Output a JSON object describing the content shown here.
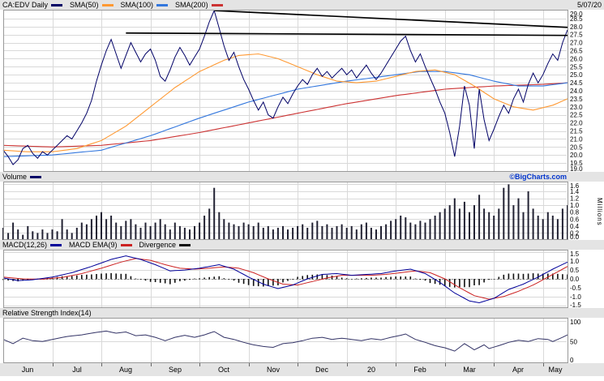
{
  "chart_data": {
    "type": "line",
    "title": "CA:EDV Daily",
    "date": "5/07/20",
    "watermark": "©BigCharts.com",
    "volume_units": "Millions",
    "colors": {
      "price": "#000066",
      "sma50": "#ff9933",
      "sma100": "#3377dd",
      "sma200": "#cc3333",
      "volume": "#222233",
      "macd": "#000099",
      "macd_ema": "#cc2222",
      "divergence": "#111111",
      "rsi": "#333366",
      "grid": "#d9d9d9",
      "border": "#999999",
      "trendline": "#000000",
      "watermark_color": "#0033cc"
    },
    "legend_main": [
      {
        "label": "CA:EDV Daily",
        "color": "#000066"
      },
      {
        "label": "SMA(50)",
        "color": "#ff9933"
      },
      {
        "label": "SMA(100)",
        "color": "#3377dd"
      },
      {
        "label": "SMA(200)",
        "color": "#cc3333"
      }
    ],
    "legend_volume": [
      {
        "label": "Volume",
        "color": "#000066"
      }
    ],
    "legend_macd": [
      {
        "label": "MACD(12,26)",
        "color": "#000099"
      },
      {
        "label": "MACD EMA(9)",
        "color": "#cc2222"
      },
      {
        "label": "Divergence",
        "color": "#111111"
      }
    ],
    "legend_rsi": [
      {
        "label": "Relative Strength Index(14)"
      }
    ],
    "months": [
      {
        "label": "Jun",
        "start": 0
      },
      {
        "label": "Jul",
        "start": 10
      },
      {
        "label": "Aug",
        "start": 20
      },
      {
        "label": "Sep",
        "start": 30
      },
      {
        "label": "Oct",
        "start": 40
      },
      {
        "label": "Nov",
        "start": 50
      },
      {
        "label": "Dec",
        "start": 60
      },
      {
        "label": "20",
        "start": 70
      },
      {
        "label": "Feb",
        "start": 80
      },
      {
        "label": "Mar",
        "start": 90
      },
      {
        "label": "Apr",
        "start": 100
      },
      {
        "label": "May",
        "start": 110
      }
    ],
    "n_points": 116,
    "axes": {
      "price_ticks": [
        19.0,
        19.5,
        20.0,
        20.5,
        21.0,
        21.5,
        22.0,
        22.5,
        23.0,
        23.5,
        24.0,
        24.5,
        25.0,
        25.5,
        26.0,
        26.5,
        27.0,
        27.5,
        28.0,
        28.5,
        29.0
      ],
      "price_ylim": [
        19.0,
        29.0
      ],
      "volume_ticks": [
        0.0,
        0.2,
        0.4,
        0.6,
        0.8,
        1.0,
        1.2,
        1.4,
        1.6
      ],
      "volume_ylim": [
        0.0,
        1.6
      ],
      "macd_ticks": [
        -1.5,
        -1.0,
        -0.5,
        0.0,
        0.5,
        1.0,
        1.5
      ],
      "macd_ylim": [
        -1.5,
        1.5
      ],
      "rsi_ticks": [
        0,
        50,
        100
      ],
      "rsi_ylim": [
        0,
        100
      ]
    },
    "price": [
      20.3,
      19.9,
      19.4,
      19.7,
      20.4,
      20.6,
      20.1,
      19.8,
      20.2,
      20.0,
      20.3,
      20.6,
      20.9,
      21.2,
      21.0,
      21.5,
      22.0,
      22.6,
      23.4,
      24.6,
      25.6,
      26.5,
      27.2,
      26.3,
      25.4,
      26.2,
      27.0,
      26.4,
      25.8,
      26.3,
      26.6,
      25.9,
      24.9,
      24.6,
      25.3,
      26.1,
      26.7,
      26.2,
      25.6,
      26.1,
      26.6,
      27.4,
      28.3,
      29.0,
      27.9,
      26.8,
      25.9,
      26.4,
      25.5,
      24.7,
      24.1,
      23.4,
      22.8,
      23.3,
      22.5,
      22.3,
      23.0,
      23.6,
      23.2,
      23.8,
      24.3,
      24.7,
      24.4,
      25.0,
      25.4,
      24.9,
      25.2,
      24.8,
      25.1,
      25.4,
      25.0,
      25.3,
      24.8,
      25.2,
      25.6,
      25.1,
      24.7,
      25.1,
      25.6,
      26.1,
      26.6,
      27.1,
      27.4,
      26.5,
      25.8,
      26.3,
      25.5,
      24.8,
      24.1,
      23.3,
      22.6,
      21.4,
      19.9,
      21.8,
      24.3,
      23.1,
      20.4,
      24.1,
      22.2,
      20.9,
      21.6,
      22.4,
      23.1,
      22.6,
      23.5,
      24.1,
      23.3,
      24.4,
      25.1,
      24.5,
      25.0,
      25.7,
      26.3,
      25.9,
      27.0,
      27.8
    ],
    "volume": [
      0.35,
      0.2,
      0.5,
      0.3,
      0.15,
      0.4,
      0.25,
      0.2,
      0.3,
      0.2,
      0.3,
      0.25,
      0.6,
      0.3,
      0.2,
      0.35,
      0.5,
      0.45,
      0.6,
      0.7,
      0.8,
      0.6,
      0.7,
      0.5,
      0.4,
      0.55,
      0.6,
      0.45,
      0.35,
      0.5,
      0.4,
      0.5,
      0.6,
      0.45,
      0.3,
      0.5,
      0.4,
      0.35,
      0.3,
      0.4,
      0.5,
      0.7,
      0.9,
      1.5,
      0.8,
      0.6,
      0.5,
      0.45,
      0.4,
      0.5,
      0.45,
      0.4,
      0.5,
      0.35,
      0.4,
      0.3,
      0.35,
      0.4,
      0.3,
      0.35,
      0.4,
      0.45,
      0.35,
      0.5,
      0.55,
      0.4,
      0.45,
      0.35,
      0.4,
      0.45,
      0.35,
      0.4,
      0.3,
      0.45,
      0.5,
      0.35,
      0.3,
      0.4,
      0.45,
      0.55,
      0.6,
      0.7,
      0.65,
      0.5,
      0.45,
      0.55,
      0.5,
      0.6,
      0.7,
      0.8,
      0.9,
      1.0,
      1.2,
      0.9,
      1.1,
      0.8,
      1.0,
      1.3,
      0.9,
      0.8,
      0.7,
      0.9,
      1.5,
      1.6,
      1.0,
      1.2,
      0.8,
      1.4,
      0.9,
      0.7,
      0.6,
      0.8,
      0.7,
      0.6,
      0.9,
      1.0
    ],
    "sma50_anchors": [
      [
        0,
        20.3
      ],
      [
        5,
        20.2
      ],
      [
        10,
        20.2
      ],
      [
        15,
        20.4
      ],
      [
        20,
        20.9
      ],
      [
        25,
        21.8
      ],
      [
        30,
        23.0
      ],
      [
        35,
        24.2
      ],
      [
        40,
        25.2
      ],
      [
        45,
        25.9
      ],
      [
        48,
        26.2
      ],
      [
        52,
        26.3
      ],
      [
        56,
        26.0
      ],
      [
        60,
        25.5
      ],
      [
        64,
        25.0
      ],
      [
        68,
        24.6
      ],
      [
        72,
        24.5
      ],
      [
        76,
        24.6
      ],
      [
        80,
        24.9
      ],
      [
        84,
        25.2
      ],
      [
        88,
        25.3
      ],
      [
        92,
        25.0
      ],
      [
        96,
        24.3
      ],
      [
        100,
        23.5
      ],
      [
        104,
        23.0
      ],
      [
        108,
        22.8
      ],
      [
        112,
        23.1
      ],
      [
        115,
        23.5
      ]
    ],
    "sma100_anchors": [
      [
        0,
        19.9
      ],
      [
        10,
        20.0
      ],
      [
        20,
        20.3
      ],
      [
        30,
        21.2
      ],
      [
        40,
        22.3
      ],
      [
        50,
        23.3
      ],
      [
        60,
        24.1
      ],
      [
        70,
        24.6
      ],
      [
        80,
        25.0
      ],
      [
        85,
        25.2
      ],
      [
        90,
        25.2
      ],
      [
        95,
        25.0
      ],
      [
        100,
        24.6
      ],
      [
        105,
        24.3
      ],
      [
        110,
        24.3
      ],
      [
        115,
        24.5
      ]
    ],
    "sma200_anchors": [
      [
        0,
        20.6
      ],
      [
        10,
        20.5
      ],
      [
        20,
        20.6
      ],
      [
        30,
        20.9
      ],
      [
        40,
        21.4
      ],
      [
        50,
        22.0
      ],
      [
        60,
        22.6
      ],
      [
        70,
        23.2
      ],
      [
        80,
        23.7
      ],
      [
        90,
        24.1
      ],
      [
        100,
        24.3
      ],
      [
        110,
        24.4
      ],
      [
        115,
        24.5
      ]
    ],
    "macd_anchors": [
      [
        0,
        0.05
      ],
      [
        3,
        -0.1
      ],
      [
        6,
        -0.05
      ],
      [
        10,
        0.1
      ],
      [
        14,
        0.35
      ],
      [
        18,
        0.7
      ],
      [
        22,
        1.1
      ],
      [
        25,
        1.3
      ],
      [
        28,
        1.1
      ],
      [
        31,
        0.8
      ],
      [
        34,
        0.45
      ],
      [
        37,
        0.5
      ],
      [
        40,
        0.6
      ],
      [
        44,
        0.8
      ],
      [
        47,
        0.55
      ],
      [
        50,
        0.1
      ],
      [
        53,
        -0.3
      ],
      [
        56,
        -0.55
      ],
      [
        59,
        -0.35
      ],
      [
        62,
        0.0
      ],
      [
        65,
        0.25
      ],
      [
        68,
        0.3
      ],
      [
        71,
        0.2
      ],
      [
        74,
        0.25
      ],
      [
        77,
        0.3
      ],
      [
        80,
        0.45
      ],
      [
        83,
        0.55
      ],
      [
        86,
        0.3
      ],
      [
        89,
        -0.2
      ],
      [
        92,
        -0.8
      ],
      [
        95,
        -1.25
      ],
      [
        97,
        -1.35
      ],
      [
        100,
        -1.1
      ],
      [
        103,
        -0.6
      ],
      [
        106,
        -0.3
      ],
      [
        109,
        0.1
      ],
      [
        112,
        0.55
      ],
      [
        115,
        0.95
      ]
    ],
    "macd_ema_anchors": [
      [
        0,
        0.1
      ],
      [
        4,
        0.0
      ],
      [
        8,
        -0.02
      ],
      [
        12,
        0.08
      ],
      [
        16,
        0.3
      ],
      [
        20,
        0.6
      ],
      [
        24,
        0.95
      ],
      [
        27,
        1.15
      ],
      [
        30,
        1.05
      ],
      [
        33,
        0.8
      ],
      [
        36,
        0.6
      ],
      [
        39,
        0.55
      ],
      [
        42,
        0.6
      ],
      [
        45,
        0.68
      ],
      [
        48,
        0.6
      ],
      [
        51,
        0.35
      ],
      [
        54,
        0.0
      ],
      [
        57,
        -0.3
      ],
      [
        60,
        -0.35
      ],
      [
        63,
        -0.15
      ],
      [
        66,
        0.05
      ],
      [
        69,
        0.2
      ],
      [
        72,
        0.2
      ],
      [
        75,
        0.2
      ],
      [
        78,
        0.25
      ],
      [
        81,
        0.35
      ],
      [
        84,
        0.45
      ],
      [
        87,
        0.35
      ],
      [
        90,
        0.0
      ],
      [
        93,
        -0.5
      ],
      [
        96,
        -0.95
      ],
      [
        99,
        -1.15
      ],
      [
        102,
        -1.0
      ],
      [
        105,
        -0.7
      ],
      [
        108,
        -0.35
      ],
      [
        111,
        0.1
      ],
      [
        115,
        0.7
      ]
    ],
    "rsi_anchors": [
      [
        0,
        55
      ],
      [
        2,
        45
      ],
      [
        4,
        58
      ],
      [
        6,
        52
      ],
      [
        8,
        50
      ],
      [
        10,
        55
      ],
      [
        13,
        62
      ],
      [
        16,
        66
      ],
      [
        19,
        72
      ],
      [
        21,
        75
      ],
      [
        23,
        70
      ],
      [
        25,
        73
      ],
      [
        27,
        64
      ],
      [
        29,
        66
      ],
      [
        31,
        60
      ],
      [
        33,
        52
      ],
      [
        35,
        60
      ],
      [
        37,
        65
      ],
      [
        39,
        60
      ],
      [
        41,
        66
      ],
      [
        43,
        74
      ],
      [
        45,
        60
      ],
      [
        47,
        55
      ],
      [
        49,
        48
      ],
      [
        51,
        42
      ],
      [
        53,
        38
      ],
      [
        55,
        36
      ],
      [
        57,
        45
      ],
      [
        59,
        47
      ],
      [
        61,
        52
      ],
      [
        63,
        58
      ],
      [
        65,
        60
      ],
      [
        67,
        55
      ],
      [
        69,
        58
      ],
      [
        71,
        55
      ],
      [
        73,
        52
      ],
      [
        75,
        57
      ],
      [
        77,
        54
      ],
      [
        79,
        60
      ],
      [
        81,
        65
      ],
      [
        82,
        68
      ],
      [
        84,
        55
      ],
      [
        86,
        48
      ],
      [
        88,
        40
      ],
      [
        90,
        35
      ],
      [
        92,
        27
      ],
      [
        94,
        45
      ],
      [
        96,
        30
      ],
      [
        98,
        42
      ],
      [
        99,
        33
      ],
      [
        101,
        40
      ],
      [
        103,
        48
      ],
      [
        105,
        53
      ],
      [
        107,
        50
      ],
      [
        109,
        57
      ],
      [
        111,
        55
      ],
      [
        112,
        50
      ],
      [
        114,
        60
      ],
      [
        115,
        66
      ]
    ],
    "trendlines": [
      {
        "from": [
          25,
          27.6
        ],
        "to": [
          115,
          27.45
        ]
      },
      {
        "from": [
          43,
          29.0
        ],
        "to": [
          115,
          27.95
        ]
      }
    ]
  }
}
